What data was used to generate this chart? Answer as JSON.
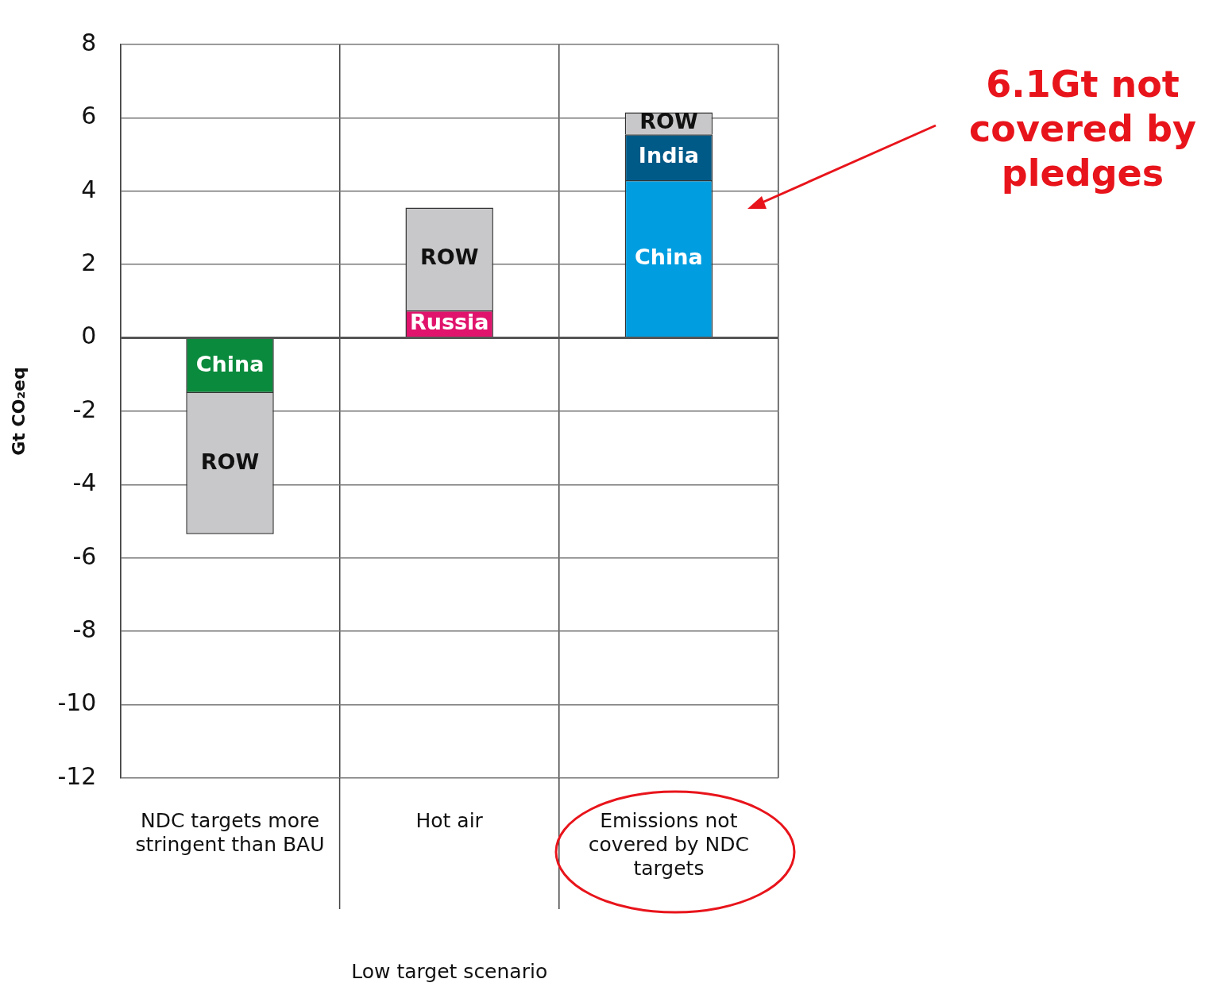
{
  "chart_data": {
    "type": "bar",
    "stacked": true,
    "ylabel": "Gt CO₂eq",
    "xlabel": "Low target scenario",
    "categories": [
      "NDC targets more stringent than BAU",
      "Hot air",
      "Emissions not covered by NDC targets"
    ],
    "series": [
      {
        "name": "China",
        "colors": [
          "#0a8a3c",
          null,
          "#009ee0"
        ],
        "values": [
          -1.5,
          null,
          4.3
        ]
      },
      {
        "name": "Russia",
        "colors": [
          null,
          "#e0146c",
          null
        ],
        "values": [
          null,
          0.75,
          null
        ]
      },
      {
        "name": "India",
        "colors": [
          null,
          null,
          "#005a87"
        ],
        "values": [
          null,
          null,
          1.25
        ]
      },
      {
        "name": "ROW",
        "colors": [
          "#c8c8ca",
          "#c8c8ca",
          "#c8c8ca"
        ],
        "values": [
          -3.85,
          2.8,
          0.6
        ]
      }
    ],
    "ylim": [
      -12,
      8
    ],
    "yticks": [
      -12,
      -10,
      -8,
      -6,
      -4,
      -2,
      0,
      2,
      4,
      6,
      8
    ],
    "grid": true,
    "legend": false,
    "annotations": [
      "6.1Gt not covered by pledges"
    ]
  }
}
